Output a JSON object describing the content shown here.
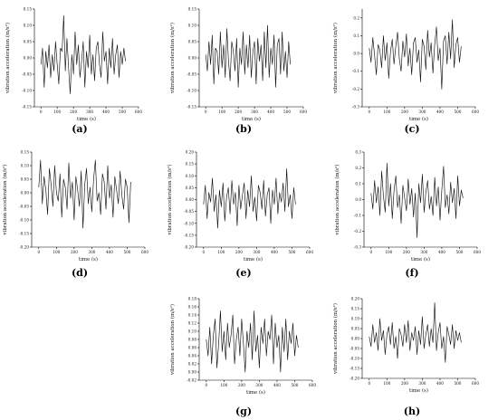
{
  "chart_data": [
    {
      "panel": "(a)",
      "type": "line",
      "xlabel": "time (s)",
      "ylabel": "vibration acceleration (m/s²)",
      "xlim": [
        -40,
        600
      ],
      "ylim": [
        -0.15,
        0.15
      ],
      "xticks": [
        "0",
        "100",
        "200",
        "300",
        "400",
        "500",
        "600"
      ],
      "yticks": [
        "-0.15",
        "-0.10",
        "-0.05",
        "0.00",
        "0.05",
        "0.10",
        "0.15"
      ],
      "series": [
        {
          "x": [
            0,
            10,
            20,
            30,
            40,
            50,
            60,
            70,
            80,
            90,
            100,
            110,
            120,
            130,
            140,
            150,
            160,
            170,
            180,
            190,
            200,
            210,
            220,
            230,
            240,
            250,
            260,
            270,
            280,
            290,
            300,
            310,
            320,
            330,
            340,
            350,
            360,
            370,
            380,
            390,
            400,
            410,
            420,
            430,
            440,
            450,
            460,
            470,
            480,
            490,
            500,
            510,
            520
          ],
          "values": [
            -0.02,
            0.03,
            -0.09,
            0.02,
            -0.03,
            0.04,
            -0.06,
            0.01,
            -0.04,
            0.05,
            -0.02,
            -0.08,
            0.03,
            0.02,
            0.13,
            -0.04,
            0.06,
            -0.03,
            -0.11,
            0.01,
            -0.05,
            0.08,
            -0.02,
            0.04,
            -0.06,
            -0.01,
            0.05,
            -0.09,
            0.02,
            -0.03,
            0.07,
            -0.05,
            0.01,
            -0.07,
            0.03,
            0.05,
            -0.02,
            -0.06,
            0.08,
            -0.01,
            0.02,
            -0.08,
            0.03,
            -0.03,
            0.06,
            -0.05,
            0.01,
            0.04,
            -0.06,
            0.02,
            -0.02,
            0.03,
            -0.01
          ]
        }
      ]
    },
    {
      "panel": "(b)",
      "type": "line",
      "xlabel": "time (s)",
      "ylabel": "vibration acceleration (m/s²)",
      "xlim": [
        -40,
        600
      ],
      "ylim": [
        -0.15,
        0.15
      ],
      "xticks": [
        "0",
        "100",
        "200",
        "300",
        "400",
        "500",
        "600"
      ],
      "yticks": [
        "-0.15",
        "-0.10",
        "-0.05",
        "0.00",
        "0.05",
        "0.10",
        "0.15"
      ],
      "series": [
        {
          "x": [
            0,
            10,
            20,
            30,
            40,
            50,
            60,
            70,
            80,
            90,
            100,
            110,
            120,
            130,
            140,
            150,
            160,
            170,
            180,
            190,
            200,
            210,
            220,
            230,
            240,
            250,
            260,
            270,
            280,
            290,
            300,
            310,
            320,
            330,
            340,
            350,
            360,
            370,
            380,
            390,
            400,
            410,
            420,
            430,
            440,
            450,
            460,
            470,
            480,
            490,
            500,
            510,
            520
          ],
          "values": [
            0.01,
            -0.04,
            0.05,
            -0.02,
            0.07,
            -0.08,
            0.03,
            0.02,
            -0.05,
            0.08,
            -0.03,
            0.04,
            -0.06,
            0.09,
            -0.01,
            -0.07,
            0.05,
            0.02,
            -0.04,
            0.06,
            -0.09,
            0.03,
            -0.02,
            0.08,
            -0.05,
            0.04,
            -0.03,
            0.07,
            -0.06,
            0.02,
            0.05,
            -0.08,
            0.06,
            -0.01,
            0.04,
            -0.07,
            0.08,
            -0.03,
            0.1,
            -0.06,
            0.03,
            -0.02,
            0.07,
            -0.09,
            0.04,
            0.06,
            -0.05,
            0.08,
            -0.04,
            0.02,
            -0.06,
            0.05,
            -0.02
          ]
        }
      ]
    },
    {
      "panel": "(c)",
      "type": "line",
      "xlabel": "time (s)",
      "ylabel": "vibration acceleration (m/s²)",
      "xlim": [
        -40,
        600
      ],
      "ylim": [
        -0.3,
        0.25
      ],
      "xticks": [
        "0",
        "100",
        "200",
        "300",
        "400",
        "500",
        "600"
      ],
      "yticks": [
        "-0.3",
        "-0.2",
        "-0.1",
        "0.0",
        "0.1",
        "0.2"
      ],
      "series": [
        {
          "x": [
            0,
            10,
            20,
            30,
            40,
            50,
            60,
            70,
            80,
            90,
            100,
            110,
            120,
            130,
            140,
            150,
            160,
            170,
            180,
            190,
            200,
            210,
            220,
            230,
            240,
            250,
            260,
            270,
            280,
            290,
            300,
            310,
            320,
            330,
            340,
            350,
            360,
            370,
            380,
            390,
            400,
            410,
            420,
            430,
            440,
            450,
            460,
            470,
            480,
            490,
            500,
            510,
            520
          ],
          "values": [
            0.03,
            -0.05,
            0.09,
            -0.01,
            -0.12,
            0.05,
            0.02,
            -0.08,
            0.1,
            -0.04,
            0.06,
            -0.14,
            0.01,
            0.08,
            -0.06,
            0.04,
            0.12,
            -0.03,
            -0.1,
            0.07,
            -0.02,
            0.11,
            -0.07,
            0.03,
            -0.12,
            0.06,
            0.09,
            -0.05,
            0.02,
            -0.16,
            0.08,
            0.04,
            -0.09,
            0.13,
            -0.02,
            0.06,
            -0.11,
            0.05,
            0.15,
            -0.04,
            0.03,
            -0.2,
            0.07,
            0.1,
            -0.06,
            0.12,
            -0.03,
            0.19,
            -0.08,
            0.05,
            0.09,
            -0.05,
            0.04
          ]
        }
      ]
    },
    {
      "panel": "(d)",
      "type": "line",
      "xlabel": "time (s)",
      "ylabel": "vibration acceleration (m/s²)",
      "xlim": [
        -40,
        600
      ],
      "ylim": [
        -0.2,
        0.15
      ],
      "xticks": [
        "0",
        "100",
        "200",
        "300",
        "400",
        "500",
        "600"
      ],
      "yticks": [
        "-0.20",
        "-0.15",
        "-0.10",
        "-0.05",
        "0.00",
        "0.05",
        "0.10",
        "0.15"
      ],
      "series": [
        {
          "x": [
            0,
            10,
            20,
            30,
            40,
            50,
            60,
            70,
            80,
            90,
            100,
            110,
            120,
            130,
            140,
            150,
            160,
            170,
            180,
            190,
            200,
            210,
            220,
            230,
            240,
            250,
            260,
            270,
            280,
            290,
            300,
            310,
            320,
            330,
            340,
            350,
            360,
            370,
            380,
            390,
            400,
            410,
            420,
            430,
            440,
            450,
            460,
            470,
            480,
            490,
            500,
            510,
            520
          ],
          "values": [
            0.02,
            0.12,
            -0.04,
            0.06,
            0.01,
            -0.08,
            0.09,
            0.03,
            -0.05,
            0.1,
            0.0,
            -0.03,
            0.07,
            -0.09,
            0.05,
            0.02,
            -0.06,
            0.11,
            -0.02,
            0.04,
            -0.1,
            0.06,
            0.01,
            -0.05,
            0.08,
            -0.13,
            0.03,
            0.09,
            -0.04,
            0.02,
            -0.07,
            0.05,
            0.12,
            -0.03,
            0.0,
            -0.08,
            0.07,
            0.04,
            -0.06,
            0.1,
            -0.02,
            0.03,
            -0.09,
            0.06,
            0.01,
            -0.04,
            0.08,
            -0.01,
            -0.06,
            0.05,
            0.02,
            -0.11,
            0.04
          ]
        }
      ]
    },
    {
      "panel": "(e)",
      "type": "line",
      "xlabel": "time (s)",
      "ylabel": "vibration acceleration (m/s²)",
      "xlim": [
        -40,
        600
      ],
      "ylim": [
        -0.2,
        0.2
      ],
      "xticks": [
        "0",
        "100",
        "200",
        "300",
        "400",
        "500",
        "600"
      ],
      "yticks": [
        "-0.20",
        "-0.15",
        "-0.10",
        "-0.05",
        "0.00",
        "0.05",
        "0.10",
        "0.15",
        "0.20"
      ],
      "series": [
        {
          "x": [
            0,
            10,
            20,
            30,
            40,
            50,
            60,
            70,
            80,
            90,
            100,
            110,
            120,
            130,
            140,
            150,
            160,
            170,
            180,
            190,
            200,
            210,
            220,
            230,
            240,
            250,
            260,
            270,
            280,
            290,
            300,
            310,
            320,
            330,
            340,
            350,
            360,
            370,
            380,
            390,
            400,
            410,
            420,
            430,
            440,
            450,
            460,
            470,
            480,
            490,
            500,
            510,
            520
          ],
          "values": [
            -0.02,
            0.06,
            -0.08,
            0.03,
            -0.01,
            0.09,
            -0.05,
            0.02,
            -0.12,
            0.04,
            -0.03,
            0.07,
            -0.09,
            0.01,
            0.05,
            -0.06,
            0.08,
            -0.02,
            0.03,
            -0.11,
            0.06,
            -0.04,
            0.02,
            0.07,
            -0.08,
            0.04,
            -0.03,
            0.1,
            -0.05,
            0.01,
            -0.09,
            0.06,
            0.03,
            -0.04,
            0.08,
            -0.07,
            0.02,
            0.05,
            -0.1,
            0.04,
            -0.02,
            0.09,
            -0.06,
            0.03,
            -0.01,
            0.07,
            -0.05,
            0.13,
            -0.03,
            0.02,
            -0.08,
            0.05,
            -0.02
          ]
        }
      ]
    },
    {
      "panel": "(f)",
      "type": "line",
      "xlabel": "time (s)",
      "ylabel": "vibration acceleration (m/s²)",
      "xlim": [
        -40,
        600
      ],
      "ylim": [
        -0.3,
        0.3
      ],
      "xticks": [
        "0",
        "100",
        "200",
        "300",
        "400",
        "500",
        "600"
      ],
      "yticks": [
        "-0.3",
        "-0.2",
        "-0.1",
        "0.0",
        "0.1",
        "0.2",
        "0.3"
      ],
      "series": [
        {
          "x": [
            0,
            10,
            20,
            30,
            40,
            50,
            60,
            70,
            80,
            90,
            100,
            110,
            120,
            130,
            140,
            150,
            160,
            170,
            180,
            190,
            200,
            210,
            220,
            230,
            240,
            250,
            260,
            270,
            280,
            290,
            300,
            310,
            320,
            330,
            340,
            350,
            360,
            370,
            380,
            390,
            400,
            410,
            420,
            430,
            440,
            450,
            460,
            470,
            480,
            490,
            500,
            510,
            520
          ],
          "values": [
            0.04,
            -0.06,
            0.12,
            -0.02,
            0.08,
            -0.1,
            0.18,
            0.02,
            -0.08,
            0.23,
            -0.04,
            0.1,
            -0.12,
            0.06,
            0.15,
            -0.05,
            0.03,
            -0.15,
            0.09,
            0.01,
            -0.07,
            0.13,
            -0.03,
            0.07,
            -0.11,
            0.04,
            -0.24,
            0.1,
            -0.02,
            0.16,
            -0.08,
            0.05,
            0.12,
            -0.06,
            0.02,
            -0.1,
            0.14,
            -0.04,
            0.08,
            -0.13,
            0.06,
            0.21,
            -0.05,
            0.03,
            -0.09,
            0.11,
            -0.02,
            0.07,
            -0.12,
            0.15,
            -0.04,
            0.06,
            0.01
          ]
        }
      ]
    },
    {
      "panel": "(g)",
      "type": "line",
      "xlabel": "time (s)",
      "ylabel": "vibration acceleration (m/s²)",
      "xlim": [
        -40,
        600
      ],
      "ylim": [
        -0.02,
        0.18
      ],
      "xticks": [
        "0",
        "100",
        "200",
        "300",
        "400",
        "500",
        "600"
      ],
      "yticks": [
        "-0.02",
        "0.00",
        "0.02",
        "0.04",
        "0.06",
        "0.08",
        "0.10",
        "0.12",
        "0.14",
        "0.16",
        "0.18"
      ],
      "series": [
        {
          "x": [
            0,
            10,
            20,
            30,
            40,
            50,
            60,
            70,
            80,
            90,
            100,
            110,
            120,
            130,
            140,
            150,
            160,
            170,
            180,
            190,
            200,
            210,
            220,
            230,
            240,
            250,
            260,
            270,
            280,
            290,
            300,
            310,
            320,
            330,
            340,
            350,
            360,
            370,
            380,
            390,
            400,
            410,
            420,
            430,
            440,
            450,
            460,
            470,
            480,
            490,
            500,
            510,
            520
          ],
          "values": [
            0.08,
            0.04,
            0.11,
            0.02,
            0.09,
            0.13,
            0.01,
            0.07,
            0.15,
            0.05,
            0.1,
            0.03,
            0.12,
            0.06,
            0.09,
            0.14,
            0.02,
            0.08,
            0.11,
            0.04,
            0.13,
            0.07,
            0.0,
            0.1,
            0.06,
            0.12,
            0.03,
            0.15,
            0.05,
            0.09,
            0.01,
            0.11,
            0.07,
            0.13,
            0.04,
            0.1,
            0.08,
            0.14,
            0.02,
            0.12,
            0.06,
            0.09,
            0.0,
            0.11,
            0.05,
            0.13,
            0.03,
            0.1,
            0.07,
            0.12,
            0.04,
            0.09,
            0.06
          ]
        }
      ]
    },
    {
      "panel": "(h)",
      "type": "line",
      "xlabel": "time (s)",
      "ylabel": "vibration acceleration (m/s²)",
      "xlim": [
        -40,
        600
      ],
      "ylim": [
        -0.2,
        0.2
      ],
      "xticks": [
        "0",
        "100",
        "200",
        "300",
        "400",
        "500",
        "600"
      ],
      "yticks": [
        "-0.20",
        "-0.15",
        "-0.10",
        "-0.05",
        "0.00",
        "0.05",
        "0.10",
        "0.15",
        "0.20"
      ],
      "series": [
        {
          "x": [
            0,
            10,
            20,
            30,
            40,
            50,
            60,
            70,
            80,
            90,
            100,
            110,
            120,
            130,
            140,
            150,
            160,
            170,
            180,
            190,
            200,
            210,
            220,
            230,
            240,
            250,
            260,
            270,
            280,
            290,
            300,
            310,
            320,
            330,
            340,
            350,
            360,
            370,
            380,
            390,
            400,
            410,
            420,
            430,
            440,
            450,
            460,
            470,
            480,
            490,
            500,
            510,
            520
          ],
          "values": [
            0.01,
            -0.04,
            0.07,
            -0.02,
            0.03,
            -0.06,
            0.1,
            -0.01,
            0.04,
            -0.08,
            0.02,
            0.06,
            -0.03,
            0.08,
            -0.05,
            0.01,
            -0.1,
            0.05,
            0.02,
            -0.04,
            0.07,
            -0.02,
            0.09,
            -0.06,
            0.03,
            -0.01,
            0.06,
            -0.08,
            0.04,
            -0.03,
            0.11,
            -0.05,
            0.02,
            0.07,
            -0.04,
            0.05,
            -0.02,
            0.18,
            -0.06,
            0.03,
            0.08,
            -0.05,
            0.01,
            -0.12,
            0.06,
            0.02,
            -0.03,
            0.07,
            -0.05,
            0.04,
            -0.01,
            0.03,
            -0.02
          ]
        }
      ]
    }
  ]
}
